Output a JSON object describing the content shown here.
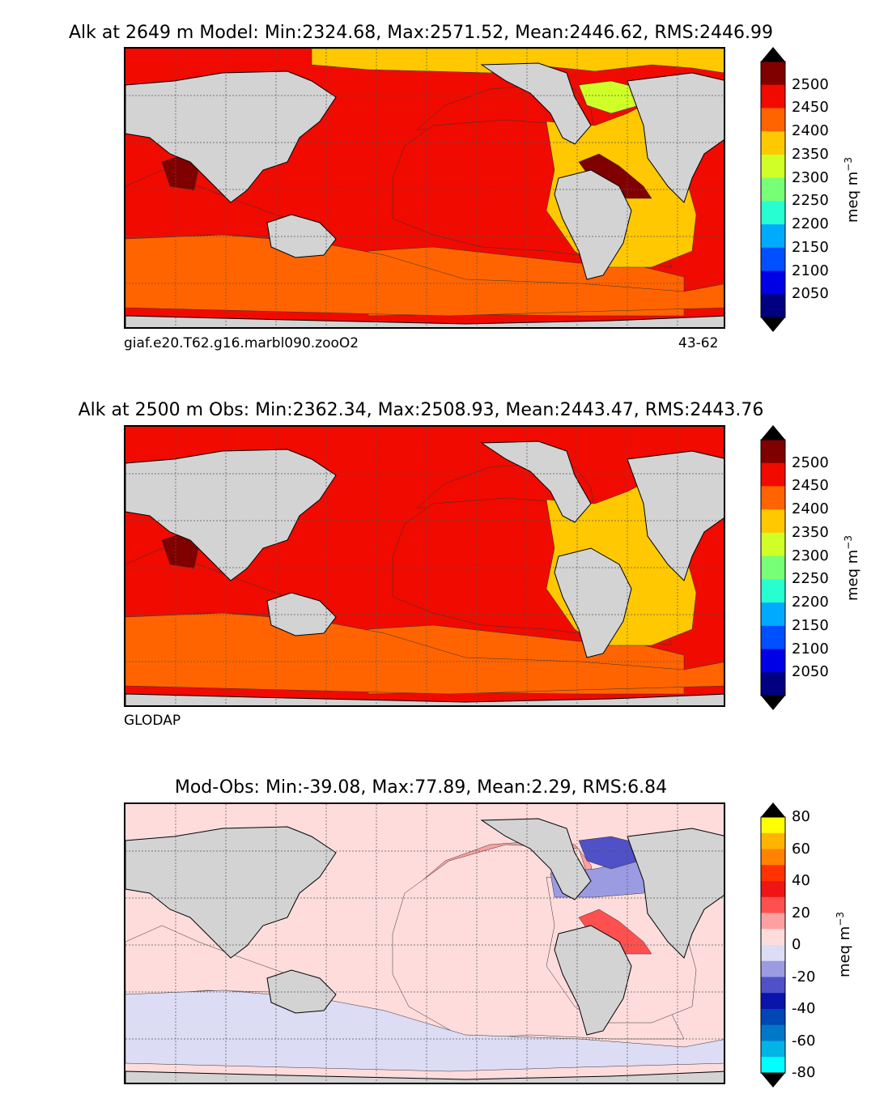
{
  "chart_data": [
    {
      "type": "heatmap",
      "title": "Alk at 2649 m Model: Min:2324.68, Max:2571.52, Mean:2446.62, RMS:2446.99",
      "caption_left": "giaf.e20.T62.g16.marbl090.zooO2",
      "caption_right": "43-62",
      "colorbar": {
        "label": "meq m",
        "label_exponent": "−3",
        "ticks": [
          "2500",
          "2450",
          "2400",
          "2350",
          "2300",
          "2250",
          "2200",
          "2150",
          "2100",
          "2050"
        ],
        "levels": [
          2000,
          2050,
          2100,
          2150,
          2200,
          2250,
          2300,
          2350,
          2400,
          2450,
          2500,
          2550
        ],
        "colors": [
          "#000080",
          "#0000e6",
          "#0050ff",
          "#00aaff",
          "#28ffd0",
          "#78ff78",
          "#d0ff28",
          "#ffc800",
          "#ff6400",
          "#f00a00",
          "#800000"
        ],
        "extend": "both"
      },
      "regions": {
        "north_pacific": 2450,
        "equatorial_pacific": 2450,
        "south_pacific": 2400,
        "east_tropical_pacific": 2500,
        "arabian_sea": 2500,
        "indian_ocean": 2450,
        "southern_ocean": 2400,
        "atlantic": 2350,
        "labrador_sea": 2300,
        "arctic": 2350
      }
    },
    {
      "type": "heatmap",
      "title": "Alk at 2500 m Obs: Min:2362.34, Max:2508.93, Mean:2443.47, RMS:2443.76",
      "caption_left": "GLODAP",
      "caption_right": "",
      "colorbar": {
        "label": "meq m",
        "label_exponent": "−3",
        "ticks": [
          "2500",
          "2450",
          "2400",
          "2350",
          "2300",
          "2250",
          "2200",
          "2150",
          "2100",
          "2050"
        ],
        "levels": [
          2000,
          2050,
          2100,
          2150,
          2200,
          2250,
          2300,
          2350,
          2400,
          2450,
          2500,
          2550
        ],
        "colors": [
          "#000080",
          "#0000e6",
          "#0050ff",
          "#00aaff",
          "#28ffd0",
          "#78ff78",
          "#d0ff28",
          "#ffc800",
          "#ff6400",
          "#f00a00",
          "#800000"
        ],
        "extend": "both"
      },
      "regions": {
        "north_pacific": 2450,
        "equatorial_pacific": 2450,
        "south_pacific": 2400,
        "arabian_sea": 2500,
        "indian_ocean": 2450,
        "southern_ocean": 2400,
        "atlantic": 2350
      }
    },
    {
      "type": "heatmap",
      "title": "Mod-Obs: Min:-39.08, Max:77.89, Mean:2.29, RMS:6.84",
      "caption_left": "",
      "caption_right": "",
      "colorbar": {
        "label": "meq m",
        "label_exponent": "−3",
        "ticks": [
          "80",
          "60",
          "40",
          "20",
          "0",
          "-20",
          "-40",
          "-60",
          "-80"
        ],
        "levels": [
          -80,
          -70,
          -60,
          -50,
          -40,
          -30,
          -20,
          -10,
          0,
          10,
          20,
          30,
          40,
          50,
          60,
          70,
          80
        ],
        "colors": [
          "#00ffff",
          "#00b4e6",
          "#0078c8",
          "#0046b4",
          "#0a14aa",
          "#5050c8",
          "#9b9be1",
          "#dcdcf5",
          "#ffdcdc",
          "#ffa0a0",
          "#ff5050",
          "#f01414",
          "#ff3200",
          "#ff8200",
          "#ffb400",
          "#ffff00"
        ],
        "extend": "both"
      },
      "regions": {
        "north_pacific_band": 15,
        "pacific": 5,
        "east_tropical_pacific": 25,
        "labrador_sea": -25,
        "north_atlantic": -15,
        "atlantic": 5,
        "southern_ocean": -5,
        "indian_ocean": 5
      }
    }
  ]
}
